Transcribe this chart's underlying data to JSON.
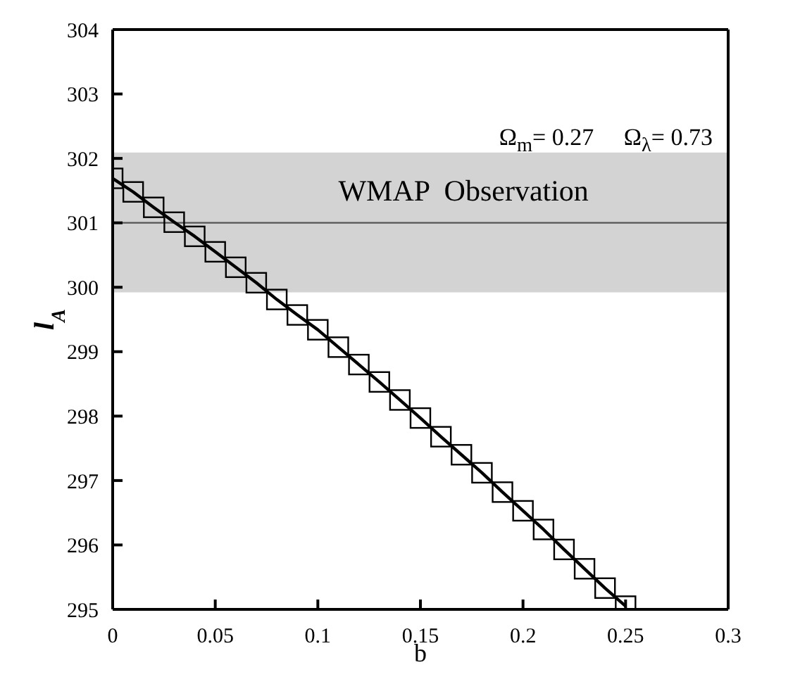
{
  "chart_data": {
    "type": "line",
    "xlabel": "b",
    "ylabel": "l$_{A}$",
    "x": [
      0,
      0.01,
      0.02,
      0.03,
      0.04,
      0.05,
      0.06,
      0.07,
      0.08,
      0.09,
      0.1,
      0.11,
      0.12,
      0.13,
      0.14,
      0.15,
      0.16,
      0.17,
      0.18,
      0.19,
      0.2,
      0.21,
      0.22,
      0.23,
      0.24,
      0.25
    ],
    "series": [
      {
        "color": "#000000",
        "values": [
          301.69,
          301.48,
          301.24,
          301.01,
          300.79,
          300.55,
          300.31,
          300.07,
          299.81,
          299.57,
          299.34,
          299.07,
          298.8,
          298.53,
          298.25,
          297.97,
          297.68,
          297.4,
          297.12,
          296.82,
          296.53,
          296.24,
          295.93,
          295.63,
          295.33,
          295.05
        ]
      }
    ],
    "xlim": [
      0,
      0.3
    ],
    "xticks": [
      0,
      0.05,
      0.1,
      0.15,
      0.2,
      0.25,
      0.3
    ],
    "ylim": [
      295,
      304
    ],
    "yticks": [
      295,
      296,
      297,
      298,
      299,
      300,
      301,
      302,
      303,
      304
    ],
    "bands": [
      {
        "axis": "y",
        "from": 299.92,
        "to": 302.09,
        "label": "WMAP  Observation",
        "color": "#d3d3d3"
      }
    ],
    "ref_lines": [
      {
        "axis": "y",
        "value": 301,
        "color": "#555555"
      }
    ],
    "annotations": [
      "Ω$_{m}$= 0.27     Ω$_{λ}$= 0.73"
    ],
    "marker": "square",
    "line_style": "solid"
  }
}
